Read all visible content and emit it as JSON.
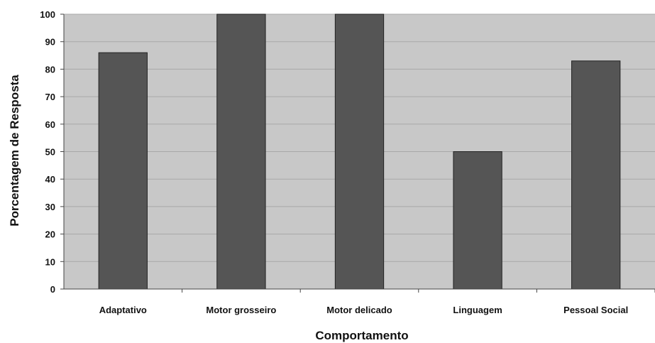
{
  "chart_data": {
    "type": "bar",
    "title": "",
    "xlabel": "Comportamento",
    "ylabel": "Porcentagem de Resposta",
    "categories": [
      "Adaptativo",
      "Motor grosseiro",
      "Motor delicado",
      "Linguagem",
      "Pessoal Social"
    ],
    "values": [
      86,
      100,
      100,
      50,
      83
    ],
    "ylim": [
      0,
      100
    ],
    "yticks": [
      0,
      10,
      20,
      30,
      40,
      50,
      60,
      70,
      80,
      90,
      100
    ],
    "grid": true,
    "legend": "none"
  },
  "colors": {
    "plot_background": "#c8c8c8",
    "bar_fill": "#555555",
    "grid": "#a8a8a8",
    "axis": "#444444"
  }
}
